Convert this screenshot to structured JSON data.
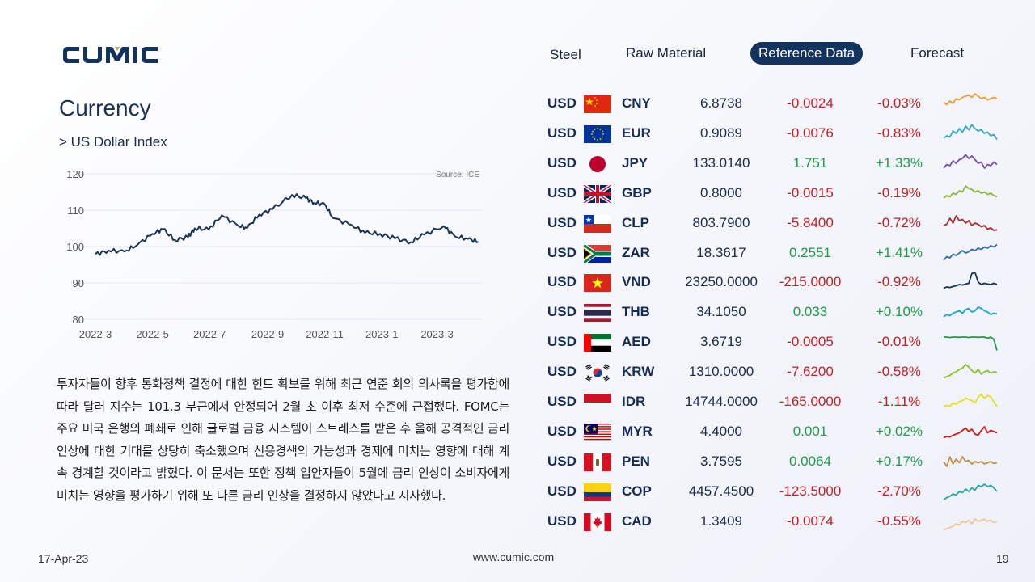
{
  "brand": "CUMIC",
  "nav": {
    "items": [
      {
        "label": "Steel",
        "active": false
      },
      {
        "label": "Raw Material",
        "active": false
      },
      {
        "label": "Reference Data",
        "active": true
      },
      {
        "label": "Forecast",
        "active": false
      }
    ]
  },
  "page": {
    "title": "Currency",
    "subtitle": "> US Dollar Index"
  },
  "chart_data": {
    "type": "line",
    "source_note": "Source: ICE",
    "x_ticks": [
      "2022-3",
      "2022-5",
      "2022-7",
      "2022-9",
      "2022-11",
      "2023-1",
      "2023-3"
    ],
    "y_ticks": [
      120,
      110,
      100,
      90,
      80
    ],
    "ylim": [
      80,
      120
    ],
    "xlim": [
      "2022-03-01",
      "2023-04-17"
    ],
    "grid": true,
    "series": [
      {
        "color": "#1a3358",
        "points": [
          [
            "2022-03-01",
            97.9
          ],
          [
            "2022-03-15",
            98.9
          ],
          [
            "2022-04-01",
            98.6
          ],
          [
            "2022-04-15",
            100.5
          ],
          [
            "2022-05-01",
            103.5
          ],
          [
            "2022-05-12",
            104.8
          ],
          [
            "2022-05-25",
            101.8
          ],
          [
            "2022-06-08",
            102.6
          ],
          [
            "2022-06-15",
            105.0
          ],
          [
            "2022-06-30",
            104.7
          ],
          [
            "2022-07-14",
            108.6
          ],
          [
            "2022-07-31",
            105.8
          ],
          [
            "2022-08-10",
            105.1
          ],
          [
            "2022-08-23",
            108.8
          ],
          [
            "2022-09-06",
            110.2
          ],
          [
            "2022-09-27",
            114.2
          ],
          [
            "2022-10-12",
            113.3
          ],
          [
            "2022-10-21",
            112.0
          ],
          [
            "2022-11-01",
            111.6
          ],
          [
            "2022-11-10",
            107.8
          ],
          [
            "2022-11-30",
            105.9
          ],
          [
            "2022-12-14",
            103.8
          ],
          [
            "2022-12-30",
            103.5
          ],
          [
            "2023-01-15",
            102.2
          ],
          [
            "2023-02-01",
            101.2
          ],
          [
            "2023-02-15",
            103.3
          ],
          [
            "2023-03-08",
            105.6
          ],
          [
            "2023-03-20",
            102.8
          ],
          [
            "2023-04-03",
            102.1
          ],
          [
            "2023-04-14",
            101.3
          ]
        ]
      }
    ]
  },
  "body_text": "투자자들이 향후 통화정책 결정에 대한 힌트 확보를 위해 최근 연준 회의 의사록을 평가함에 따라 달러 지수는 101.3 부근에서 안정되어 2월 초 이후 최저 수준에 근접했다. FOMC는 주요 미국 은행의 폐쇄로 인해 글로벌 금융 시스템이 스트레스를 받은 후 올해 공격적인 금리 인상에 대한 기대를 상당히 축소했으며 신용경색의 가능성과 경제에 미치는 영향에 대해 계속 경계할 것이라고 밝혔다. 이 문서는 또한 정책 입안자들이 5월에 금리 인상이 소비자에게 미치는 영향을 평가하기 위해 또 다른 금리 인상을 결정하지 않았다고 시사했다.",
  "currencies": [
    {
      "base": "USD",
      "code": "CNY",
      "flag": "cn-flag",
      "rate": "6.8738",
      "change": "-0.0024",
      "pct": "-0.03%",
      "dir": "neg",
      "spark_color": "#f0a040",
      "spark": [
        0.45,
        0.55,
        0.4,
        0.5,
        0.3,
        0.35,
        0.25,
        0.2,
        0.15,
        0.25,
        0.1,
        0.2,
        0.3,
        0.25,
        0.35,
        0.3,
        0.25,
        0.3
      ]
    },
    {
      "base": "USD",
      "code": "EUR",
      "flag": "eu-flag",
      "rate": "0.9089",
      "change": "-0.0076",
      "pct": "-0.83%",
      "dir": "neg",
      "spark_color": "#3aa8c8",
      "spark": [
        0.7,
        0.6,
        0.65,
        0.4,
        0.5,
        0.3,
        0.45,
        0.2,
        0.35,
        0.15,
        0.3,
        0.4,
        0.35,
        0.5,
        0.45,
        0.6,
        0.55,
        0.75
      ]
    },
    {
      "base": "USD",
      "code": "JPY",
      "flag": "jp-flag",
      "rate": "133.0140",
      "change": "1.751",
      "pct": "+1.33%",
      "dir": "pos",
      "spark_color": "#7b4fa8",
      "spark": [
        0.7,
        0.55,
        0.6,
        0.4,
        0.5,
        0.35,
        0.3,
        0.15,
        0.3,
        0.2,
        0.35,
        0.5,
        0.45,
        0.7,
        0.55,
        0.6,
        0.45,
        0.55
      ]
    },
    {
      "base": "USD",
      "code": "GBP",
      "flag": "gb-flag",
      "rate": "0.8000",
      "change": "-0.0015",
      "pct": "-0.19%",
      "dir": "neg",
      "spark_color": "#8db840",
      "spark": [
        0.7,
        0.6,
        0.65,
        0.5,
        0.55,
        0.4,
        0.45,
        0.2,
        0.3,
        0.35,
        0.45,
        0.4,
        0.5,
        0.45,
        0.55,
        0.5,
        0.6,
        0.65
      ]
    },
    {
      "base": "USD",
      "code": "CLP",
      "flag": "cl-flag",
      "rate": "803.7900",
      "change": "-5.8400",
      "pct": "-0.72%",
      "dir": "neg",
      "spark_color": "#a83030",
      "spark": [
        0.6,
        0.55,
        0.3,
        0.5,
        0.2,
        0.4,
        0.35,
        0.5,
        0.4,
        0.6,
        0.5,
        0.55,
        0.65,
        0.6,
        0.75,
        0.7,
        0.8,
        0.78
      ]
    },
    {
      "base": "USD",
      "code": "ZAR",
      "flag": "za-flag",
      "rate": "18.3617",
      "change": "0.2551",
      "pct": "+1.41%",
      "dir": "pos",
      "spark_color": "#3a6fb0",
      "spark": [
        0.8,
        0.65,
        0.7,
        0.55,
        0.6,
        0.5,
        0.4,
        0.5,
        0.45,
        0.35,
        0.4,
        0.3,
        0.35,
        0.25,
        0.3,
        0.2,
        0.25,
        0.15
      ]
    },
    {
      "base": "USD",
      "code": "VND",
      "flag": "vn-flag",
      "rate": "23250.0000",
      "change": "-215.0000",
      "pct": "-0.92%",
      "dir": "neg",
      "spark_color": "#1a3358",
      "spark": [
        0.75,
        0.7,
        0.72,
        0.68,
        0.65,
        0.6,
        0.62,
        0.58,
        0.55,
        0.15,
        0.1,
        0.5,
        0.6,
        0.55,
        0.58,
        0.6,
        0.55,
        0.6
      ]
    },
    {
      "base": "USD",
      "code": "THB",
      "flag": "th-flag",
      "rate": "34.1050",
      "change": "0.033",
      "pct": "+0.10%",
      "dir": "pos",
      "spark_color": "#20a8d0",
      "spark": [
        0.7,
        0.6,
        0.65,
        0.55,
        0.5,
        0.45,
        0.55,
        0.4,
        0.35,
        0.5,
        0.45,
        0.3,
        0.35,
        0.45,
        0.5,
        0.6,
        0.55,
        0.58
      ]
    },
    {
      "base": "USD",
      "code": "AED",
      "flag": "ae-flag",
      "rate": "3.6719",
      "change": "-0.0005",
      "pct": "-0.01%",
      "dir": "neg",
      "spark_color": "#1e9c48",
      "spark": [
        0.3,
        0.3,
        0.32,
        0.3,
        0.3,
        0.31,
        0.3,
        0.3,
        0.32,
        0.3,
        0.3,
        0.31,
        0.3,
        0.3,
        0.35,
        0.3,
        0.4,
        0.85
      ]
    },
    {
      "base": "USD",
      "code": "KRW",
      "flag": "kr-flag",
      "rate": "1310.0000",
      "change": "-7.6200",
      "pct": "-0.58%",
      "dir": "neg",
      "spark_color": "#8dc030",
      "spark": [
        0.75,
        0.7,
        0.65,
        0.55,
        0.5,
        0.4,
        0.35,
        0.2,
        0.3,
        0.45,
        0.55,
        0.4,
        0.6,
        0.5,
        0.45,
        0.55,
        0.5,
        0.52
      ]
    },
    {
      "base": "USD",
      "code": "IDR",
      "flag": "id-flag",
      "rate": "14744.0000",
      "change": "-165.0000",
      "pct": "-1.11%",
      "dir": "neg",
      "spark_color": "#e8e020",
      "spark": [
        0.7,
        0.65,
        0.68,
        0.55,
        0.6,
        0.5,
        0.45,
        0.35,
        0.4,
        0.45,
        0.55,
        0.3,
        0.2,
        0.35,
        0.25,
        0.3,
        0.5,
        0.7
      ]
    },
    {
      "base": "USD",
      "code": "MYR",
      "flag": "my-flag",
      "rate": "4.4000",
      "change": "0.001",
      "pct": "+0.02%",
      "dir": "pos",
      "spark_color": "#d02020",
      "spark": [
        0.75,
        0.7,
        0.72,
        0.65,
        0.6,
        0.55,
        0.45,
        0.35,
        0.5,
        0.4,
        0.6,
        0.65,
        0.45,
        0.3,
        0.55,
        0.45,
        0.5,
        0.55
      ]
    },
    {
      "base": "USD",
      "code": "PEN",
      "flag": "pe-flag",
      "rate": "3.7595",
      "change": "0.0064",
      "pct": "+0.17%",
      "dir": "pos",
      "spark_color": "#c09050",
      "spark": [
        0.5,
        0.7,
        0.3,
        0.6,
        0.4,
        0.55,
        0.3,
        0.5,
        0.45,
        0.6,
        0.5,
        0.55,
        0.5,
        0.6,
        0.55,
        0.5,
        0.58,
        0.55
      ]
    },
    {
      "base": "USD",
      "code": "COP",
      "flag": "co-flag",
      "rate": "4457.4500",
      "change": "-123.5000",
      "pct": "-2.70%",
      "dir": "neg",
      "spark_color": "#30a8a0",
      "spark": [
        0.85,
        0.75,
        0.7,
        0.6,
        0.65,
        0.5,
        0.55,
        0.4,
        0.5,
        0.35,
        0.45,
        0.25,
        0.3,
        0.2,
        0.3,
        0.25,
        0.35,
        0.5
      ]
    },
    {
      "base": "USD",
      "code": "CAD",
      "flag": "ca-flag",
      "rate": "1.3409",
      "change": "-0.0074",
      "pct": "-0.55%",
      "dir": "neg",
      "spark_color": "#f0c8a0",
      "spark": [
        0.85,
        0.8,
        0.75,
        0.7,
        0.6,
        0.65,
        0.5,
        0.55,
        0.45,
        0.6,
        0.4,
        0.5,
        0.45,
        0.4,
        0.5,
        0.45,
        0.55,
        0.5
      ]
    }
  ],
  "footer": {
    "date": "17-Apr-23",
    "url": "www.cumic.com",
    "page_number": "19"
  }
}
